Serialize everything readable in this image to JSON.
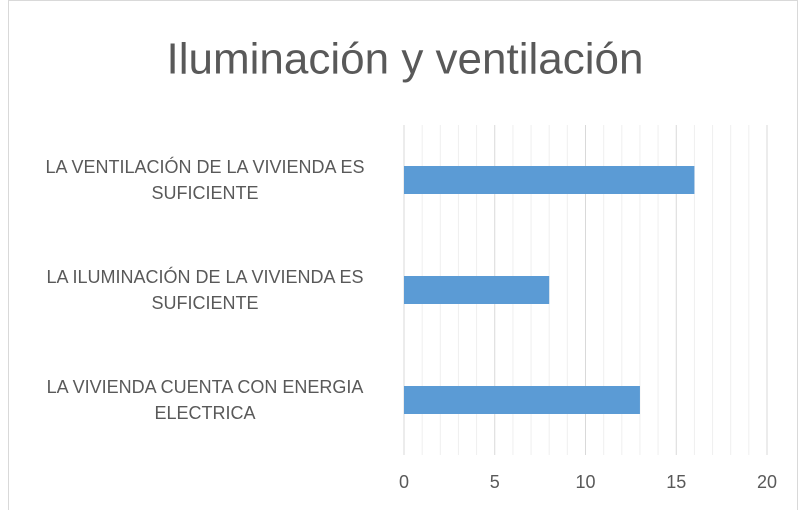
{
  "chart_data": {
    "type": "hbar",
    "title": "Iluminación y ventilación",
    "categories": [
      "LA VENTILACIÓN DE LA VIVIENDA ES SUFICIENTE",
      "LA ILUMINACIÓN DE LA VIVIENDA ES SUFICIENTE",
      "LA VIVIENDA CUENTA CON ENERGIA ELECTRICA"
    ],
    "values": [
      16,
      8,
      13
    ],
    "color": "#5b9bd5",
    "xlim": [
      0,
      20
    ],
    "xticks": [
      0,
      5,
      10,
      15,
      20
    ],
    "grid": true,
    "minor_grid": true
  }
}
